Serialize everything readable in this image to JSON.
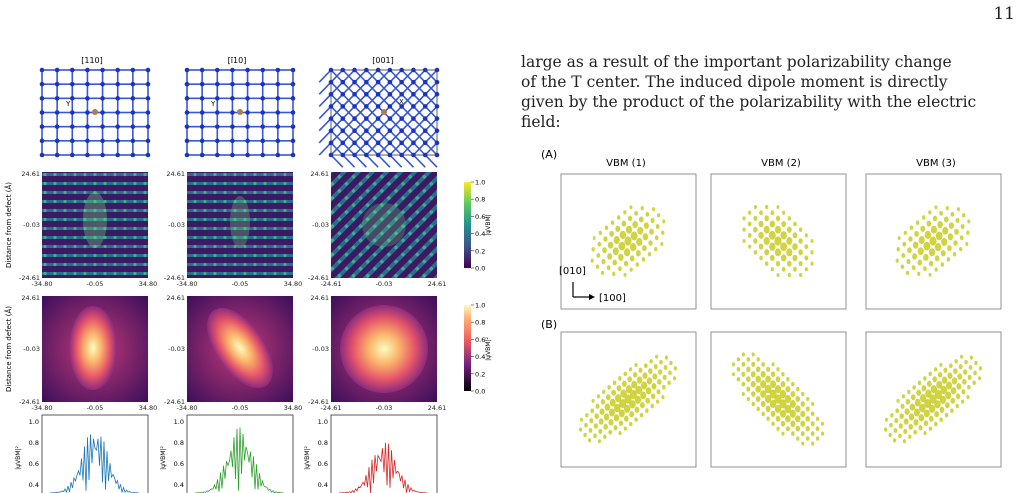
{
  "page_number": "11",
  "text_lines": [
    "large as a result of the important polarizability change",
    "of the T center. The induced dipole moment is directly",
    "given by the product of the polarizability with the electric",
    "field:"
  ],
  "left_figure": {
    "structure_titles": [
      "[110]",
      "[ī10]",
      "[001]"
    ],
    "axis_labels": {
      "y": "Y",
      "x": "X"
    },
    "ylabel_dist": "Distance from defect (Å)",
    "row_ticks": {
      "y_top": "24.61",
      "y_mid": "-0.03",
      "y_bot": "-24.61",
      "x1": [
        "-34.80",
        "-0.05",
        "34.80"
      ],
      "x3": [
        "-24.61",
        "-0.03",
        "24.61"
      ]
    },
    "colorbar_ticks": [
      "1.0",
      "0.8",
      "0.6",
      "0.4",
      "0.2",
      "0.0"
    ],
    "colorbar_labels": [
      "|ψVBM|",
      "|ψVBM|²"
    ],
    "plot_ylabel": "|ψVBM|²",
    "plot_ticks": [
      "1.0",
      "0.8",
      "0.6",
      "0.4"
    ],
    "colors": {
      "cmap1": [
        "#440154",
        "#3b528b",
        "#21918c",
        "#5ec962",
        "#fde725"
      ],
      "cmap2": [
        "#000004",
        "#721f81",
        "#f1605d",
        "#feb078",
        "#fcfdbf"
      ],
      "line1": "#1f77b4",
      "line2": "#2ca02c",
      "line3": "#d62728"
    }
  },
  "right_figure": {
    "panel_A": "(A)",
    "panel_B": "(B)",
    "titles": [
      "VBM (1)",
      "VBM (2)",
      "VBM (3)"
    ],
    "axis_y": "[010]",
    "axis_x": "[100]",
    "iso_color": "#c8cd1e"
  }
}
